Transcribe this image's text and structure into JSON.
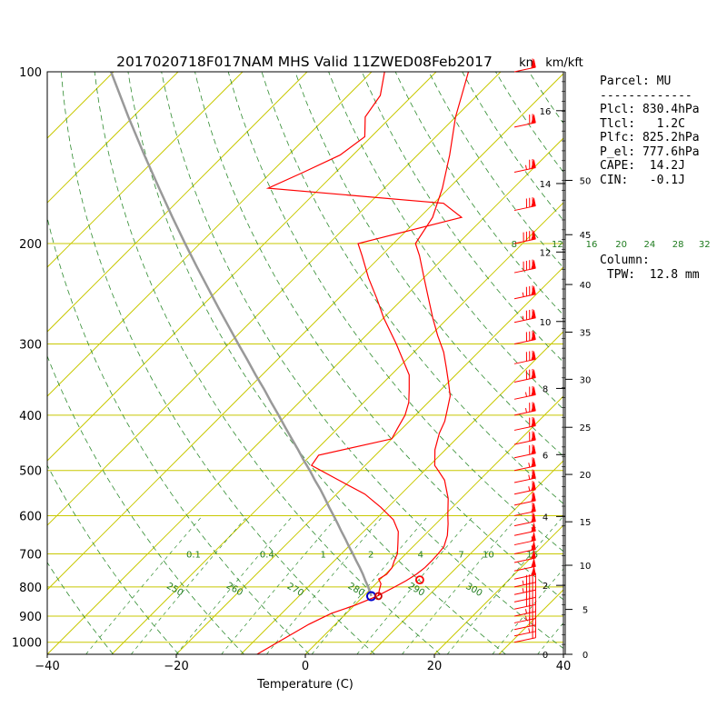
{
  "chart_data": {
    "type": "line",
    "title": "2017020718F017NAM MHS Valid 11ZWED08Feb2017",
    "xlabel": "Temperature (C)",
    "ylabel": "",
    "xlim": [
      -40,
      40
    ],
    "ylim": [
      1050,
      100
    ],
    "y_scale": "log",
    "x_ticks": [
      "−40",
      "−20",
      "0",
      "20",
      "40"
    ],
    "x_tick_values": [
      -40,
      -20,
      0,
      20,
      40
    ],
    "pressure_ticks": [
      100,
      200,
      300,
      400,
      500,
      600,
      700,
      800,
      900,
      1000
    ],
    "wind_label": "kn",
    "height_label": "km/kft",
    "km_ticks": [
      0,
      2,
      4,
      6,
      8,
      10,
      12,
      14,
      16
    ],
    "km_tick_pressures": [
      1050,
      795,
      602,
      469,
      359,
      274,
      207,
      157,
      117
    ],
    "kft_ticks": [
      0,
      5,
      10,
      15,
      20,
      25,
      30,
      35,
      40,
      45,
      50
    ],
    "kft_tick_pressures": [
      1050,
      876,
      733,
      615,
      508,
      420,
      346,
      286,
      236,
      193,
      155
    ],
    "mixing_ratio_labels": {
      "upper_p": 200,
      "upper": [
        {
          "label": "8",
          "x": -31.3
        },
        {
          "label": "12",
          "x": -24.6
        },
        {
          "label": "16",
          "x": -19.3
        },
        {
          "label": "20",
          "x": -14.7
        },
        {
          "label": "24",
          "x": -10.3
        },
        {
          "label": "28",
          "x": -5.9
        },
        {
          "label": "32",
          "x": -1.8
        }
      ],
      "lower_p": 700,
      "lower": [
        {
          "label": "0.1",
          "x": -32.9
        },
        {
          "label": "0.4",
          "x": -21.5
        },
        {
          "label": "1",
          "x": -12.8
        },
        {
          "label": "2",
          "x": -5.4
        },
        {
          "label": "4",
          "x": 2.3
        },
        {
          "label": "7",
          "x": 8.6
        },
        {
          "label": "10",
          "x": 12.8
        },
        {
          "label": "16",
          "x": 19.6
        }
      ]
    },
    "dry_adiabat_labels": [
      {
        "label": "250",
        "t": -30.1,
        "p": 816
      },
      {
        "label": "260",
        "t": -20.9,
        "p": 815
      },
      {
        "label": "270",
        "t": -11.4,
        "p": 817
      },
      {
        "label": "280",
        "t": -2.0,
        "p": 816
      },
      {
        "label": "290",
        "t": 7.3,
        "p": 816
      },
      {
        "label": "300",
        "t": 16.3,
        "p": 817
      }
    ],
    "series": [
      {
        "name": "Temperature",
        "color": "#ff0000",
        "p": [
          1050,
          930,
          890,
          860,
          830,
          800,
          780,
          760,
          740,
          720,
          700,
          680,
          650,
          620,
          600,
          560,
          520,
          500,
          490,
          460,
          430,
          410,
          390,
          370,
          350,
          330,
          310,
          290,
          270,
          250,
          230,
          210,
          200,
          180,
          160,
          140,
          120,
          100
        ],
        "t": [
          -7.5,
          -4.1,
          -2.3,
          0.2,
          2.1,
          3.4,
          4.2,
          4.8,
          5.1,
          5.1,
          5.0,
          4.8,
          3.6,
          1.9,
          0.6,
          -2.0,
          -5.4,
          -7.9,
          -9.2,
          -11.6,
          -13.5,
          -14.5,
          -16.0,
          -17.6,
          -20.0,
          -22.6,
          -25.4,
          -28.9,
          -32.4,
          -36.0,
          -39.9,
          -44.1,
          -46.6,
          -48.0,
          -51.0,
          -55.0,
          -60.0,
          -65.0
        ]
      },
      {
        "name": "Dewpoint",
        "color": "#ff0000",
        "p": [
          830,
          810,
          790,
          775,
          760,
          740,
          720,
          700,
          670,
          640,
          610,
          580,
          550,
          520,
          490,
          470,
          440,
          420,
          400,
          380,
          360,
          340,
          300,
          270,
          250,
          230,
          210,
          200,
          180,
          170,
          160,
          150,
          140,
          130,
          120,
          110,
          100
        ],
        "t": [
          2.3,
          1.5,
          0.8,
          -0.3,
          0.2,
          0.0,
          -0.7,
          -1.3,
          -2.9,
          -4.6,
          -7.2,
          -11.1,
          -15.6,
          -21.8,
          -28.3,
          -28.8,
          -20.0,
          -20.8,
          -21.6,
          -23.0,
          -25.0,
          -27.2,
          -34.0,
          -40.0,
          -44.0,
          -48.5,
          -53.0,
          -55.5,
          -43.5,
          -48.5,
          -78.0,
          -75.0,
          -72.0,
          -71.0,
          -74.0,
          -75.0,
          -78.0
        ]
      },
      {
        "name": "Parcel",
        "color": "#999999",
        "p": [
          830,
          800,
          780,
          760,
          740,
          720,
          700,
          680,
          660,
          640,
          620,
          600,
          580,
          560,
          540,
          520,
          500,
          480,
          460,
          440,
          420,
          400,
          380,
          360,
          340,
          320,
          300,
          280,
          260,
          240,
          220,
          200,
          180,
          160,
          140,
          120,
          100
        ],
        "t": [
          1.2,
          -0.7,
          -2.1,
          -3.5,
          -5.0,
          -6.6,
          -8.2,
          -9.9,
          -11.6,
          -13.4,
          -15.2,
          -17.1,
          -19.1,
          -21.1,
          -23.2,
          -25.5,
          -27.8,
          -30.3,
          -32.8,
          -35.5,
          -38.3,
          -41.2,
          -44.3,
          -47.5,
          -51.0,
          -54.6,
          -58.5,
          -62.6,
          -67.0,
          -71.7,
          -76.8,
          -82.3,
          -88.3,
          -94.9,
          -102.3,
          -110.7,
          -120.4
        ]
      }
    ],
    "markers": {
      "parcel_origin_p": 830,
      "parcel_origin_t": 2.3,
      "lcl_p": 830.4,
      "lcl_t": 1.2,
      "lfc_p": 825.2,
      "el_p": 777.6
    },
    "wind_barbs": {
      "color": "#ff0000",
      "p": [
        1000,
        975,
        950,
        925,
        900,
        875,
        850,
        825,
        800,
        775,
        750,
        725,
        700,
        675,
        650,
        625,
        600,
        575,
        550,
        525,
        500,
        475,
        450,
        425,
        400,
        375,
        350,
        325,
        300,
        275,
        250,
        225,
        200,
        175,
        150,
        125,
        100
      ],
      "speed_kn": [
        20,
        25,
        30,
        35,
        35,
        40,
        40,
        45,
        45,
        50,
        50,
        50,
        55,
        55,
        55,
        60,
        60,
        60,
        65,
        65,
        65,
        70,
        70,
        70,
        75,
        75,
        80,
        80,
        80,
        85,
        85,
        90,
        90,
        80,
        75,
        70,
        60
      ]
    }
  },
  "parcel_panel": {
    "lines": [
      "Parcel: MU",
      "-------------",
      "Plcl: 830.4hPa",
      "Tlcl:   1.2C",
      "Plfc: 825.2hPa",
      "P_el: 777.6hPa",
      "CAPE:  14.2J",
      "CIN:   -0.1J"
    ]
  },
  "column_panel": {
    "lines": [
      "Column:",
      " TPW:  12.8 mm"
    ]
  }
}
